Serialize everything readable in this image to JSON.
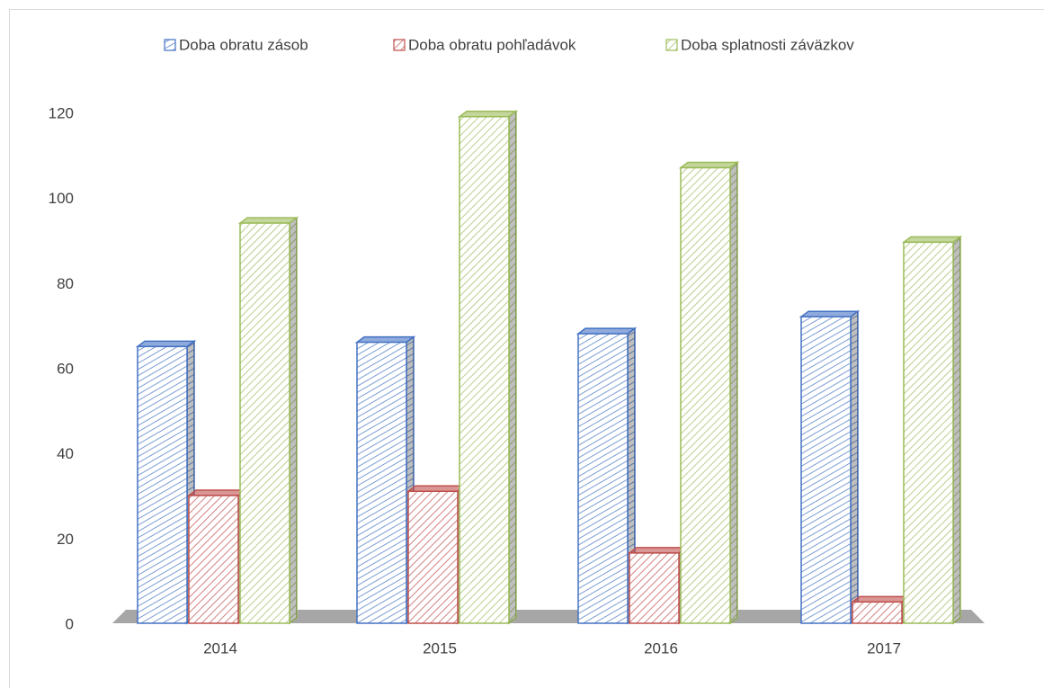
{
  "chart_data": {
    "type": "bar3d",
    "categories": [
      "2014",
      "2015",
      "2016",
      "2017"
    ],
    "series": [
      {
        "name": "Doba obratu zásob",
        "color": "#4472c4",
        "values": [
          65,
          66,
          68,
          72
        ]
      },
      {
        "name": "Doba obratu pohľadávok",
        "color": "#c0504d",
        "values": [
          30,
          31,
          16.5,
          5
        ]
      },
      {
        "name": "Doba splatnosti záväzkov",
        "color": "#9bbb59",
        "values": [
          94,
          119,
          107,
          89.5
        ]
      }
    ],
    "ylim": [
      0,
      120
    ],
    "yticks": [
      0,
      20,
      40,
      60,
      80,
      100,
      120
    ],
    "legend": "top"
  }
}
